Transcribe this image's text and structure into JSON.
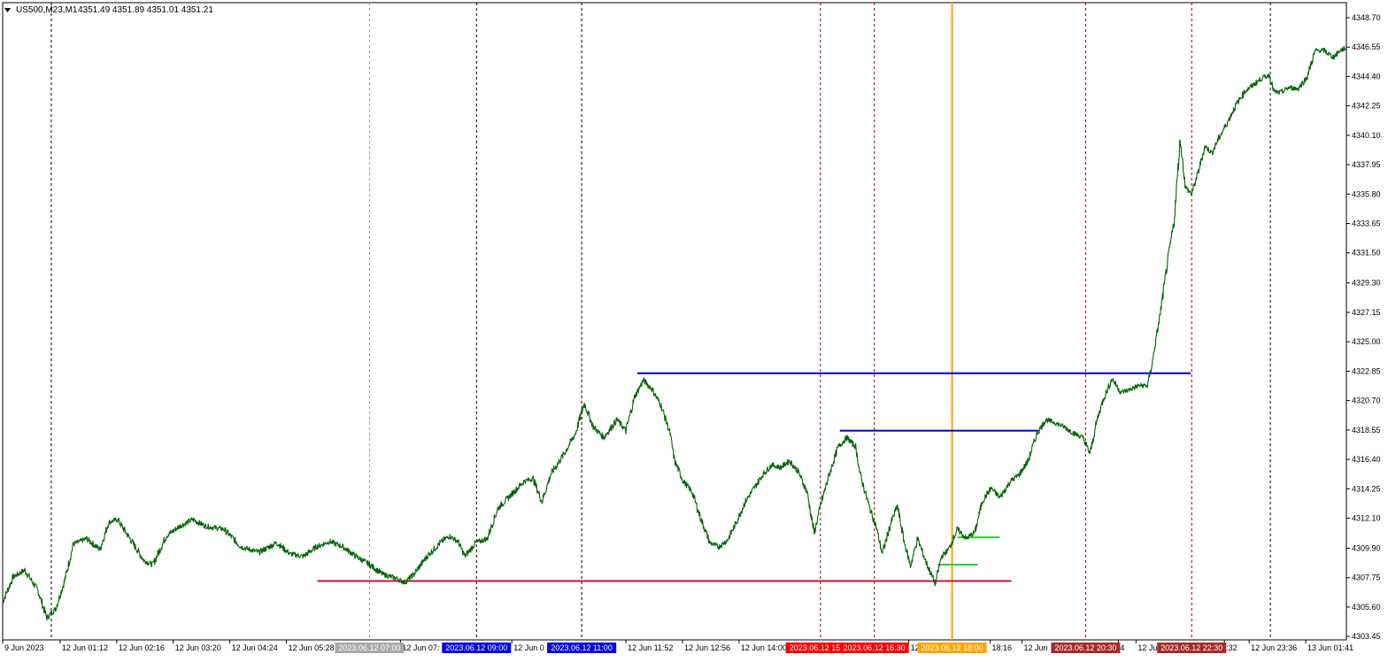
{
  "chart_data": {
    "type": "line",
    "title": "US500,M23,M1",
    "ohlc_text": "4351.49 4351.89 4351.01 4351.21",
    "series_color": "#006400",
    "background": "#ffffff",
    "ylim": [
      4303.2,
      4349.8
    ],
    "y_ticks": [
      "4348.70",
      "4346.55",
      "4344.40",
      "4342.25",
      "4340.10",
      "4337.95",
      "4335.80",
      "4333.65",
      "4331.50",
      "4329.30",
      "4327.15",
      "4325.00",
      "4322.85",
      "4320.70",
      "4318.55",
      "4316.40",
      "4314.25",
      "4312.10",
      "4309.90",
      "4307.75",
      "4305.60",
      "4303.45"
    ],
    "x_range": [
      0,
      1520
    ],
    "x_ticks": [
      {
        "x": 0,
        "label": "9 Jun 2023"
      },
      {
        "x": 65,
        "label": "12 Jun 01:12"
      },
      {
        "x": 129,
        "label": "12 Jun 02:16"
      },
      {
        "x": 193,
        "label": "12 Jun 03:20"
      },
      {
        "x": 257,
        "label": "12 Jun 04:24"
      },
      {
        "x": 321,
        "label": "12 Jun 05:28"
      },
      {
        "x": 450,
        "label": "12 Jun 07:"
      },
      {
        "x": 576,
        "label": "12 Jun 0"
      },
      {
        "x": 705,
        "label": "12 Jun 11:52"
      },
      {
        "x": 769,
        "label": "12 Jun 12:56"
      },
      {
        "x": 833,
        "label": "12 Jun 14:00"
      },
      {
        "x": 1025,
        "label": "12"
      },
      {
        "x": 1117,
        "label": "18:16"
      },
      {
        "x": 1153,
        "label": "12 Jun"
      },
      {
        "x": 1262,
        "label": "4"
      },
      {
        "x": 1282,
        "label": "12 Ju"
      },
      {
        "x": 1382,
        "label": ":32"
      },
      {
        "x": 1410,
        "label": "12 Jun 23:36"
      },
      {
        "x": 1474,
        "label": "13 Jun 01:41"
      }
    ],
    "vertical_lines": [
      {
        "x": 55,
        "color": "#000000"
      },
      {
        "x": 415,
        "color": "#999999"
      },
      {
        "x": 536,
        "color": "#000000"
      },
      {
        "x": 655,
        "color": "#000000"
      },
      {
        "x": 925,
        "color": "#8b0000"
      },
      {
        "x": 986,
        "color": "#8b0000"
      },
      {
        "x": 1225,
        "color": "#8b0000"
      },
      {
        "x": 1345,
        "color": "#8b0000"
      },
      {
        "x": 1434,
        "color": "#000000"
      }
    ],
    "current_time_line": {
      "x": 1074,
      "color": "#ffa500"
    },
    "time_markers": [
      {
        "x": 415,
        "label": "2023.06.12 07:00",
        "bg": "#a9a9a9"
      },
      {
        "x": 536,
        "label": "2023.06.12 09:00",
        "bg": "#0000ee"
      },
      {
        "x": 655,
        "label": "2023.06.12 11:00",
        "bg": "#0000ee"
      },
      {
        "x": 925,
        "label": "2023.06.12 15:00",
        "bg": "#ff0000"
      },
      {
        "x": 986,
        "label": "2023.06.12 16:30",
        "bg": "#ff0000"
      },
      {
        "x": 1074,
        "label": "2023.06.12 18:00",
        "bg": "#ffa500"
      },
      {
        "x": 1225,
        "label": "2023.06.12 20:30",
        "bg": "#a52a2a"
      },
      {
        "x": 1345,
        "label": "2023.06.12 22:30",
        "bg": "#a52a2a"
      }
    ],
    "levels": [
      {
        "name": "resistance-high",
        "value": 4322.7,
        "x1": 718,
        "x2": 1344,
        "color": "#0000cd"
      },
      {
        "name": "resistance-mid",
        "value": 4318.5,
        "x1": 947,
        "x2": 1172,
        "color": "#0000cd"
      },
      {
        "name": "support-low",
        "value": 4307.5,
        "x1": 356,
        "x2": 1141,
        "color": "#c71545"
      },
      {
        "name": "green-upper",
        "value": 4310.7,
        "x1": 1080,
        "x2": 1128,
        "color": "#32cd32"
      },
      {
        "name": "green-lower",
        "value": 4308.7,
        "x1": 1058,
        "x2": 1103,
        "color": "#32cd32"
      }
    ],
    "price_points": [
      [
        0,
        4306.0
      ],
      [
        12,
        4307.8
      ],
      [
        25,
        4308.3
      ],
      [
        40,
        4306.8
      ],
      [
        50,
        4304.8
      ],
      [
        60,
        4305.5
      ],
      [
        70,
        4307.5
      ],
      [
        80,
        4310.2
      ],
      [
        95,
        4310.6
      ],
      [
        110,
        4309.8
      ],
      [
        120,
        4311.8
      ],
      [
        130,
        4312.0
      ],
      [
        145,
        4310.5
      ],
      [
        160,
        4309.0
      ],
      [
        170,
        4308.7
      ],
      [
        185,
        4310.8
      ],
      [
        200,
        4311.5
      ],
      [
        215,
        4312.0
      ],
      [
        230,
        4311.5
      ],
      [
        250,
        4311.3
      ],
      [
        270,
        4310.0
      ],
      [
        290,
        4309.6
      ],
      [
        310,
        4310.3
      ],
      [
        325,
        4309.5
      ],
      [
        340,
        4309.3
      ],
      [
        355,
        4310.0
      ],
      [
        370,
        4310.4
      ],
      [
        385,
        4310.0
      ],
      [
        400,
        4309.3
      ],
      [
        415,
        4308.7
      ],
      [
        430,
        4308.0
      ],
      [
        445,
        4307.7
      ],
      [
        455,
        4307.4
      ],
      [
        465,
        4308.0
      ],
      [
        480,
        4309.3
      ],
      [
        495,
        4310.3
      ],
      [
        505,
        4310.8
      ],
      [
        515,
        4310.4
      ],
      [
        523,
        4309.3
      ],
      [
        535,
        4310.3
      ],
      [
        548,
        4310.6
      ],
      [
        560,
        4312.8
      ],
      [
        575,
        4313.8
      ],
      [
        590,
        4314.8
      ],
      [
        600,
        4315.0
      ],
      [
        610,
        4313.3
      ],
      [
        620,
        4315.3
      ],
      [
        635,
        4316.8
      ],
      [
        648,
        4318.3
      ],
      [
        658,
        4320.5
      ],
      [
        668,
        4318.8
      ],
      [
        680,
        4318.0
      ],
      [
        695,
        4319.3
      ],
      [
        705,
        4318.5
      ],
      [
        715,
        4321.0
      ],
      [
        725,
        4322.2
      ],
      [
        735,
        4321.5
      ],
      [
        745,
        4320.3
      ],
      [
        755,
        4318.3
      ],
      [
        760,
        4316.3
      ],
      [
        770,
        4314.8
      ],
      [
        780,
        4314.0
      ],
      [
        790,
        4312.0
      ],
      [
        800,
        4310.3
      ],
      [
        810,
        4310.0
      ],
      [
        820,
        4310.5
      ],
      [
        830,
        4311.8
      ],
      [
        840,
        4313.3
      ],
      [
        850,
        4314.3
      ],
      [
        860,
        4315.3
      ],
      [
        870,
        4316.0
      ],
      [
        880,
        4315.8
      ],
      [
        890,
        4316.3
      ],
      [
        900,
        4315.5
      ],
      [
        910,
        4314.0
      ],
      [
        918,
        4311.0
      ],
      [
        925,
        4313.0
      ],
      [
        935,
        4315.3
      ],
      [
        945,
        4317.3
      ],
      [
        955,
        4318.0
      ],
      [
        965,
        4317.3
      ],
      [
        970,
        4315.3
      ],
      [
        980,
        4313.0
      ],
      [
        988,
        4311.5
      ],
      [
        995,
        4309.5
      ],
      [
        1005,
        4311.8
      ],
      [
        1012,
        4313.0
      ],
      [
        1020,
        4310.3
      ],
      [
        1027,
        4308.6
      ],
      [
        1035,
        4310.6
      ],
      [
        1045,
        4308.8
      ],
      [
        1055,
        4307.3
      ],
      [
        1062,
        4309.3
      ],
      [
        1070,
        4309.8
      ],
      [
        1080,
        4311.3
      ],
      [
        1090,
        4310.6
      ],
      [
        1100,
        4311.1
      ],
      [
        1108,
        4313.3
      ],
      [
        1118,
        4314.3
      ],
      [
        1128,
        4313.6
      ],
      [
        1140,
        4314.8
      ],
      [
        1150,
        4315.3
      ],
      [
        1160,
        4316.3
      ],
      [
        1170,
        4318.3
      ],
      [
        1180,
        4319.3
      ],
      [
        1190,
        4319.1
      ],
      [
        1200,
        4318.8
      ],
      [
        1212,
        4318.3
      ],
      [
        1222,
        4318.0
      ],
      [
        1230,
        4316.8
      ],
      [
        1238,
        4319.3
      ],
      [
        1245,
        4320.8
      ],
      [
        1255,
        4322.3
      ],
      [
        1265,
        4321.3
      ],
      [
        1275,
        4321.5
      ],
      [
        1285,
        4321.8
      ],
      [
        1295,
        4321.8
      ],
      [
        1300,
        4323.3
      ],
      [
        1305,
        4325.3
      ],
      [
        1310,
        4327.3
      ],
      [
        1318,
        4331.0
      ],
      [
        1325,
        4333.8
      ],
      [
        1332,
        4339.8
      ],
      [
        1338,
        4336.3
      ],
      [
        1345,
        4335.8
      ],
      [
        1352,
        4337.3
      ],
      [
        1360,
        4339.3
      ],
      [
        1368,
        4338.8
      ],
      [
        1375,
        4339.8
      ],
      [
        1385,
        4341.0
      ],
      [
        1395,
        4342.3
      ],
      [
        1405,
        4343.3
      ],
      [
        1415,
        4343.8
      ],
      [
        1425,
        4344.3
      ],
      [
        1433,
        4344.5
      ],
      [
        1438,
        4343.3
      ],
      [
        1445,
        4343.2
      ],
      [
        1455,
        4343.6
      ],
      [
        1465,
        4343.5
      ],
      [
        1475,
        4344.3
      ],
      [
        1485,
        4346.3
      ],
      [
        1495,
        4346.3
      ],
      [
        1505,
        4345.8
      ],
      [
        1513,
        4346.3
      ],
      [
        1520,
        4346.5
      ]
    ]
  }
}
